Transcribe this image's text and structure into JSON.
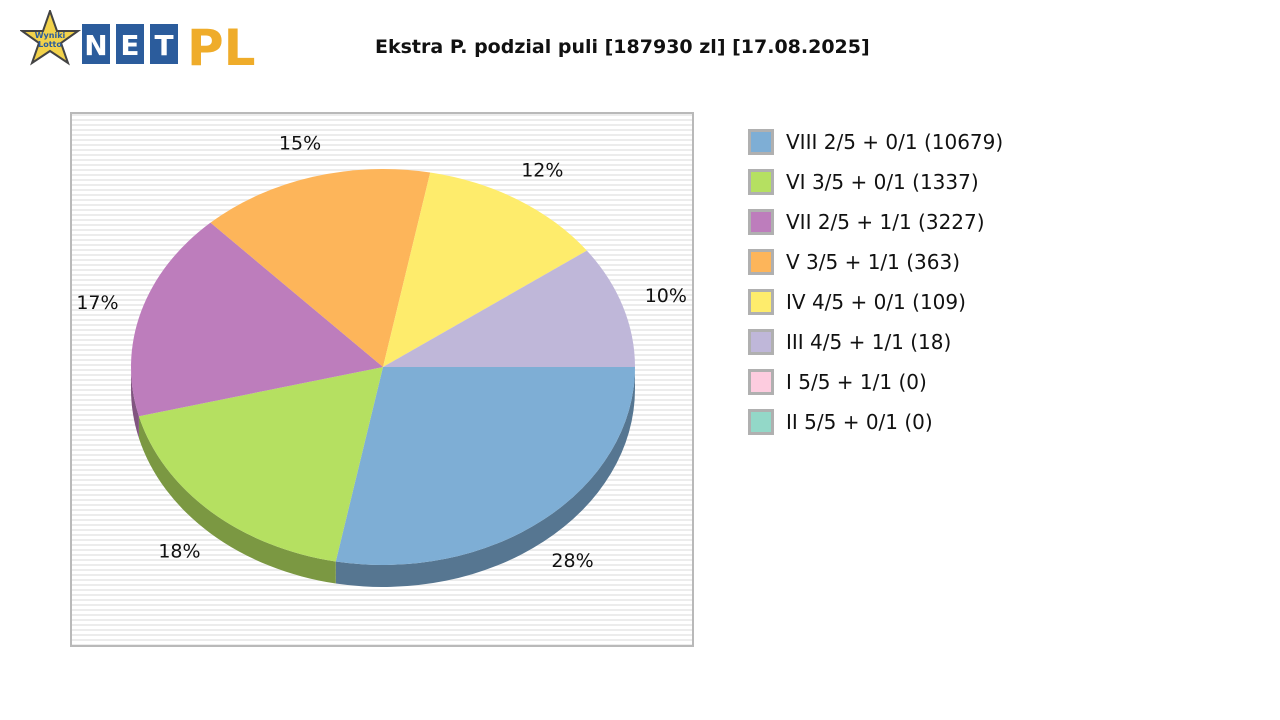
{
  "logo": {
    "star_text_line1": "Wyniki",
    "star_text_line2": "Lotto",
    "net_letters": [
      "N",
      "E",
      "T"
    ],
    "pl_text": "PL",
    "colors": {
      "star": "#f2d24b",
      "tile": "#2b5c9c",
      "pl": "#efac2a"
    }
  },
  "chart_data": {
    "type": "pie",
    "title": "Ekstra P. podzial puli [187930 zl] [17.08.2025]",
    "legend_position": "right",
    "background": "horizontal-stripes",
    "slices": [
      {
        "label": "VIII 2/5 + 0/1 (10679)",
        "value": 28,
        "display": "28%",
        "color": "#7eaed5"
      },
      {
        "label": "VI 3/5 + 0/1 (1337)",
        "value": 18,
        "display": "18%",
        "color": "#b5e061"
      },
      {
        "label": "VII 2/5 + 1/1 (3227)",
        "value": 17,
        "display": "17%",
        "color": "#bd7dbc"
      },
      {
        "label": "V 3/5 + 1/1 (363)",
        "value": 15,
        "display": "15%",
        "color": "#fdb55a"
      },
      {
        "label": "IV 4/5 + 0/1 (109)",
        "value": 12,
        "display": "12%",
        "color": "#feec6c"
      },
      {
        "label": "III 4/5 + 1/1 (18)",
        "value": 10,
        "display": "10%",
        "color": "#bfb7d9"
      },
      {
        "label": "I 5/5 + 1/1 (0)",
        "value": 0,
        "display": "",
        "color": "#fdccdf"
      },
      {
        "label": "II 5/5 + 0/1 (0)",
        "value": 0,
        "display": "",
        "color": "#93d8c8"
      }
    ]
  }
}
